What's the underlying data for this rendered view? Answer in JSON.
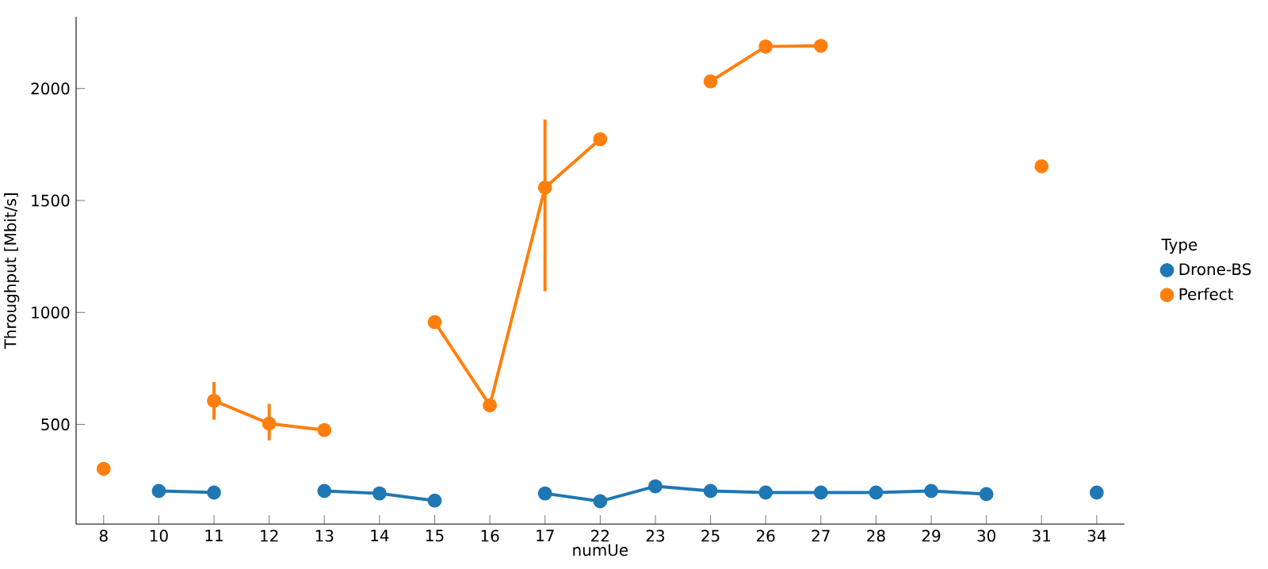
{
  "chart_data": {
    "type": "line",
    "xlabel": "numUe",
    "ylabel": "Throughput [Mbit/s]",
    "legend_title": "Type",
    "categories": [
      "8",
      "10",
      "11",
      "12",
      "13",
      "14",
      "15",
      "16",
      "17",
      "22",
      "23",
      "25",
      "26",
      "27",
      "28",
      "29",
      "30",
      "31",
      "34"
    ],
    "series": [
      {
        "name": "Drone-BS",
        "color": "#1f77b4",
        "values": [
          null,
          203,
          196,
          null,
          203,
          192,
          160,
          null,
          192,
          157,
          224,
          203,
          196,
          196,
          196,
          203,
          189,
          null,
          196
        ]
      },
      {
        "name": "Perfect",
        "color": "#ff7f0e",
        "values": [
          302,
          null,
          606,
          504,
          475,
          null,
          957,
          585,
          1558,
          1774,
          null,
          2032,
          2188,
          2191,
          null,
          null,
          null,
          1653,
          null
        ],
        "errors": [
          null,
          null,
          [
            521,
            690
          ],
          [
            429,
            592
          ],
          null,
          null,
          null,
          null,
          [
            1095,
            1862
          ],
          null,
          null,
          null,
          [
            2156,
            2219
          ],
          null,
          null,
          null,
          null,
          null,
          null
        ]
      }
    ],
    "ylim": [
      55,
      2320
    ],
    "yticks": [
      500,
      1000,
      1500,
      2000
    ],
    "marker": "circle",
    "line_style": "solid",
    "legend": "right",
    "grid": false
  }
}
